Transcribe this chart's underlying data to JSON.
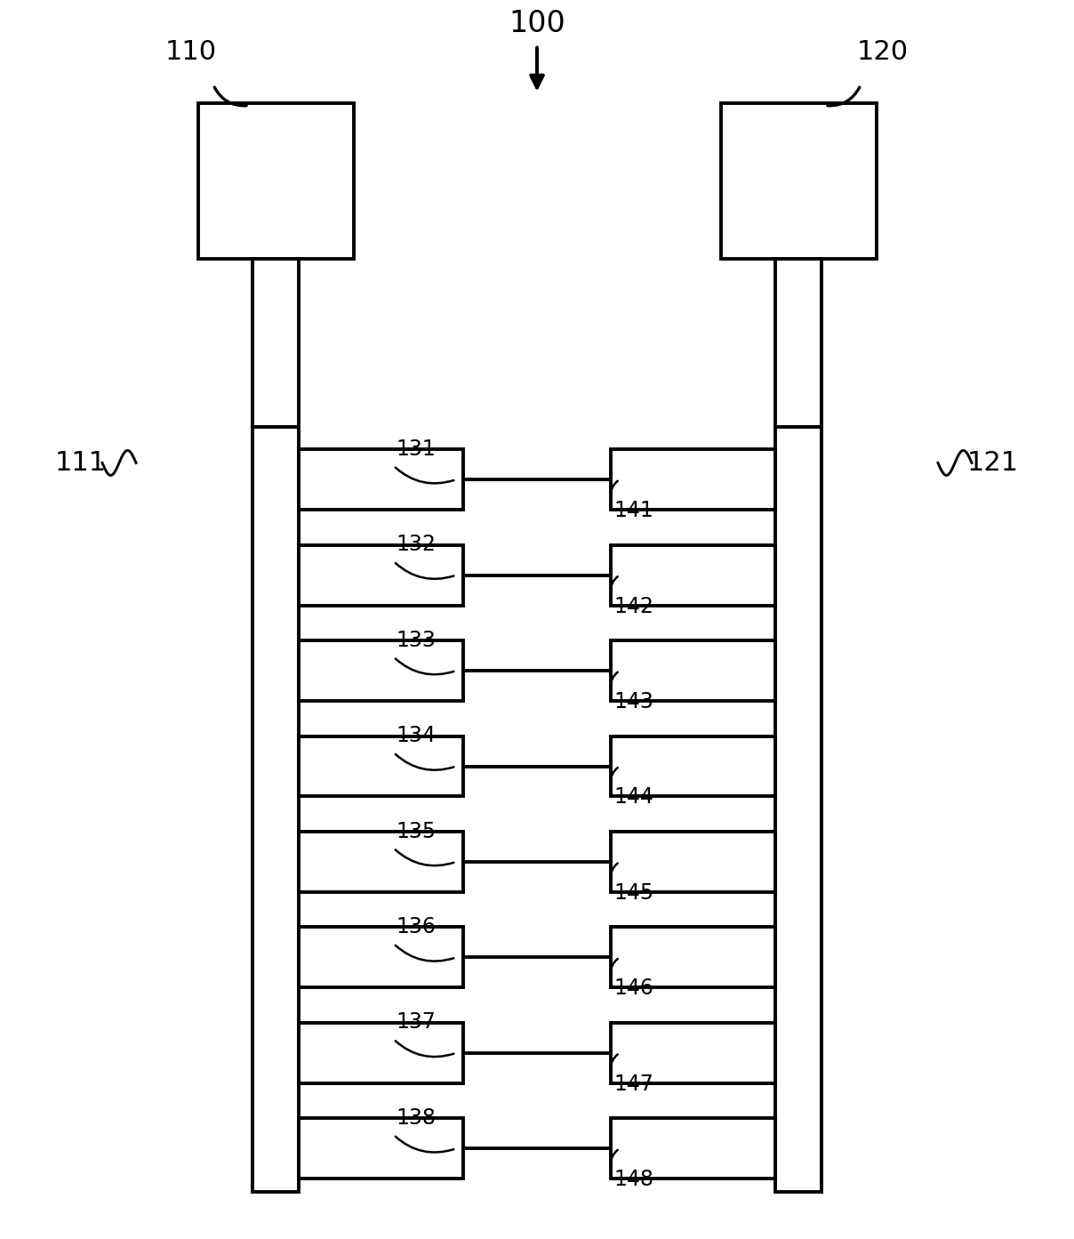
{
  "fig_width": 12.08,
  "fig_height": 13.93,
  "dpi": 100,
  "lw": 2.8,
  "lc": "#000000",
  "bg": "#ffffff",
  "n_rows": 8,
  "left_labels": [
    "131",
    "132",
    "133",
    "134",
    "135",
    "136",
    "137",
    "138"
  ],
  "right_labels": [
    "141",
    "142",
    "143",
    "144",
    "145",
    "146",
    "147",
    "148"
  ],
  "label_100": "100",
  "label_110": "110",
  "label_120": "120",
  "label_111": "111",
  "label_121": "121",
  "main_fontsize": 22,
  "device_fontsize": 17,
  "arrow_fontsize": 22
}
